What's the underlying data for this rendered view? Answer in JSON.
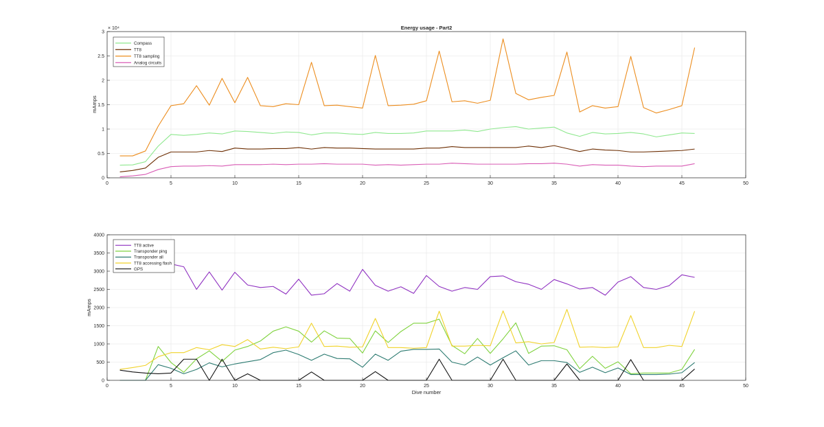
{
  "figure": {
    "background": "#ffffff"
  },
  "chart_data": [
    {
      "type": "line",
      "title": "Energy usage - Part2",
      "xlabel": "",
      "ylabel": "mAmps",
      "xlim": [
        0,
        50
      ],
      "ylim": [
        0,
        30000
      ],
      "xticks": [
        0,
        5,
        10,
        15,
        20,
        25,
        30,
        35,
        40,
        45,
        50
      ],
      "xtick_labels": [
        "0",
        "5",
        "10",
        "15",
        "20",
        "25",
        "30",
        "35",
        "40",
        "45",
        "50"
      ],
      "yticks": [
        0,
        5000,
        10000,
        15000,
        20000,
        25000,
        30000
      ],
      "ytick_labels": [
        "0",
        "0.5",
        "1",
        "1.5",
        "2",
        "2.5",
        "3"
      ],
      "y_exponent": "× 10⁴",
      "grid": true,
      "legend_position": "top-left",
      "x": [
        1,
        2,
        3,
        4,
        5,
        6,
        7,
        8,
        9,
        10,
        11,
        12,
        13,
        14,
        15,
        16,
        17,
        18,
        19,
        20,
        21,
        22,
        23,
        24,
        25,
        26,
        27,
        28,
        29,
        30,
        31,
        32,
        33,
        34,
        35,
        36,
        37,
        38,
        39,
        40,
        41,
        42,
        43,
        44,
        45,
        46
      ],
      "series": [
        {
          "name": "Compass",
          "color": "#8ee88e",
          "values": [
            2600,
            2650,
            3300,
            6500,
            8900,
            8700,
            8900,
            9200,
            9000,
            9600,
            9500,
            9300,
            9100,
            9400,
            9300,
            8800,
            9200,
            9200,
            9000,
            8900,
            9300,
            9100,
            9100,
            9200,
            9600,
            9600,
            9600,
            9800,
            9500,
            10000,
            10300,
            10500,
            10000,
            10200,
            10400,
            9200,
            8500,
            9300,
            9000,
            9100,
            9300,
            9000,
            8400,
            8800,
            9200,
            9100
          ]
        },
        {
          "name": "TT8",
          "color": "#6b2c00",
          "values": [
            1200,
            1500,
            2000,
            4200,
            5300,
            5300,
            5300,
            5600,
            5400,
            6100,
            5900,
            5900,
            6000,
            6000,
            6200,
            5900,
            6200,
            6100,
            6100,
            6000,
            5900,
            5900,
            5900,
            5900,
            6100,
            6100,
            6400,
            6200,
            6200,
            6200,
            6200,
            6200,
            6500,
            6200,
            6600,
            6000,
            5400,
            5900,
            5700,
            5600,
            5300,
            5300,
            5400,
            5500,
            5600,
            5900
          ]
        },
        {
          "name": "TT8 sampling",
          "color": "#ec8c1c",
          "values": [
            4500,
            4500,
            5500,
            10600,
            14800,
            15200,
            18900,
            14900,
            20400,
            15400,
            20600,
            14800,
            14600,
            15200,
            15000,
            23700,
            14800,
            14900,
            14600,
            14300,
            25100,
            14800,
            14900,
            15100,
            15800,
            26000,
            15600,
            15800,
            15300,
            15900,
            28500,
            17300,
            16000,
            16500,
            16900,
            25800,
            13500,
            14800,
            14300,
            14600,
            24900,
            14400,
            13300,
            14000,
            14800,
            26700
          ]
        },
        {
          "name": "Analog circuits",
          "color": "#d85ab4",
          "values": [
            200,
            400,
            700,
            1700,
            2300,
            2400,
            2400,
            2500,
            2400,
            2700,
            2700,
            2700,
            2800,
            2700,
            2800,
            2800,
            2900,
            2800,
            2800,
            2800,
            2600,
            2700,
            2600,
            2700,
            2800,
            2800,
            3000,
            2900,
            2800,
            2800,
            2800,
            2800,
            2900,
            2900,
            3000,
            2800,
            2400,
            2700,
            2600,
            2600,
            2400,
            2300,
            2400,
            2400,
            2400,
            2900
          ]
        }
      ]
    },
    {
      "type": "line",
      "title": "",
      "xlabel": "Dive number",
      "ylabel": "mAmps",
      "xlim": [
        0,
        50
      ],
      "ylim": [
        0,
        4000
      ],
      "xticks": [
        0,
        5,
        10,
        15,
        20,
        25,
        30,
        35,
        40,
        45,
        50
      ],
      "xtick_labels": [
        "0",
        "5",
        "10",
        "15",
        "20",
        "25",
        "30",
        "35",
        "40",
        "45",
        "50"
      ],
      "yticks": [
        0,
        500,
        1000,
        1500,
        2000,
        2500,
        3000,
        3500,
        4000
      ],
      "ytick_labels": [
        "0",
        "500",
        "1000",
        "1500",
        "2000",
        "2500",
        "3000",
        "3500",
        "4000"
      ],
      "grid": true,
      "legend_position": "top-left",
      "x": [
        1,
        2,
        3,
        4,
        5,
        6,
        7,
        8,
        9,
        10,
        11,
        12,
        13,
        14,
        15,
        16,
        17,
        18,
        19,
        20,
        21,
        22,
        23,
        24,
        25,
        26,
        27,
        28,
        29,
        30,
        31,
        32,
        33,
        34,
        35,
        36,
        37,
        38,
        39,
        40,
        41,
        42,
        43,
        44,
        45,
        46
      ],
      "series": [
        {
          "name": "TT8 active",
          "color": "#8e2fc0",
          "values": [
            3450,
            3400,
            3350,
            3300,
            3200,
            3120,
            2500,
            2980,
            2480,
            2970,
            2620,
            2550,
            2580,
            2370,
            2780,
            2340,
            2380,
            2660,
            2450,
            3050,
            2610,
            2450,
            2570,
            2390,
            2880,
            2580,
            2450,
            2550,
            2500,
            2850,
            2870,
            2710,
            2640,
            2500,
            2770,
            2650,
            2510,
            2550,
            2340,
            2700,
            2850,
            2550,
            2500,
            2600,
            2900,
            2830
          ]
        },
        {
          "name": "Transponder ping",
          "color": "#7ed23c",
          "values": [
            0,
            0,
            0,
            930,
            490,
            220,
            590,
            810,
            520,
            830,
            930,
            1080,
            1350,
            1470,
            1350,
            1050,
            1360,
            1160,
            1150,
            750,
            1360,
            1040,
            1340,
            1570,
            1570,
            1680,
            960,
            730,
            1150,
            740,
            1140,
            1580,
            740,
            940,
            950,
            840,
            320,
            660,
            330,
            510,
            180,
            200,
            200,
            200,
            300,
            850
          ]
        },
        {
          "name": "Transponder all",
          "color": "#2b7a70",
          "values": [
            0,
            0,
            0,
            430,
            330,
            180,
            300,
            480,
            370,
            450,
            510,
            570,
            760,
            830,
            710,
            550,
            720,
            600,
            590,
            360,
            720,
            550,
            800,
            850,
            850,
            860,
            500,
            420,
            640,
            420,
            620,
            810,
            420,
            540,
            540,
            490,
            220,
            360,
            210,
            340,
            160,
            160,
            160,
            170,
            210,
            490
          ]
        },
        {
          "name": "TT8 accessing flash",
          "color": "#f0d228",
          "values": [
            300,
            350,
            410,
            650,
            760,
            760,
            900,
            840,
            980,
            930,
            1120,
            860,
            910,
            870,
            920,
            1570,
            930,
            940,
            910,
            920,
            1700,
            900,
            900,
            880,
            900,
            1900,
            940,
            940,
            960,
            950,
            1910,
            1030,
            1060,
            1000,
            1040,
            1950,
            910,
            920,
            900,
            920,
            1780,
            900,
            900,
            960,
            930,
            1900
          ]
        },
        {
          "name": "GPS",
          "color": "#111111",
          "values": [
            280,
            230,
            200,
            180,
            200,
            580,
            580,
            0,
            580,
            0,
            180,
            0,
            0,
            0,
            0,
            230,
            0,
            0,
            0,
            0,
            240,
            0,
            0,
            0,
            0,
            580,
            0,
            0,
            0,
            0,
            580,
            0,
            0,
            0,
            0,
            450,
            0,
            0,
            0,
            0,
            570,
            0,
            0,
            0,
            0,
            310
          ]
        }
      ]
    }
  ]
}
